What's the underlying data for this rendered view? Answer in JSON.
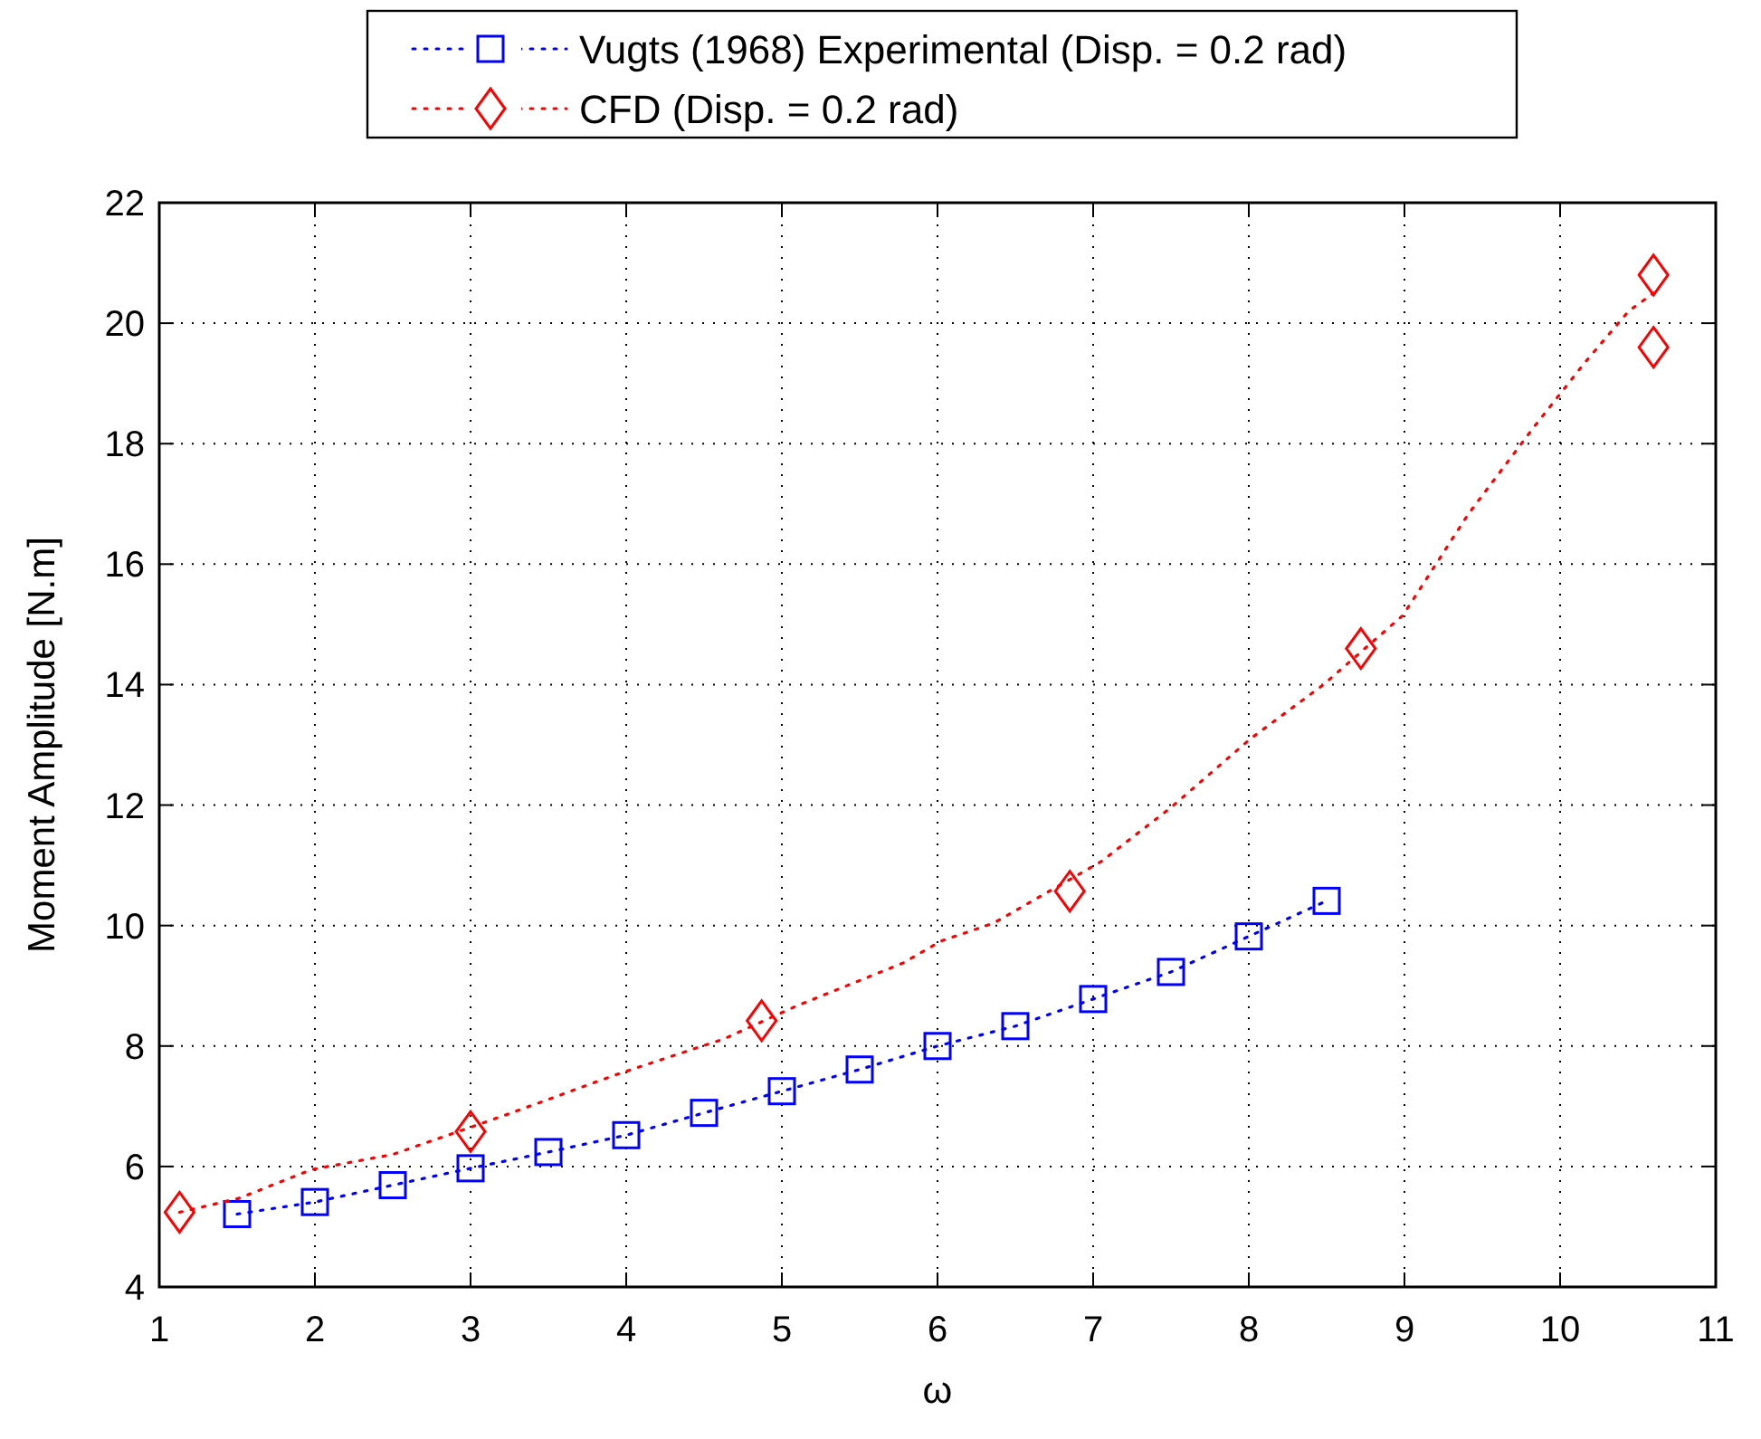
{
  "chart_data": {
    "type": "line",
    "xlabel": "ω",
    "ylabel": "Moment Amplitude [N.m]",
    "xlim": [
      1,
      11
    ],
    "xticks": [
      1,
      2,
      3,
      4,
      5,
      6,
      7,
      8,
      9,
      10,
      11
    ],
    "ylim": [
      4,
      22
    ],
    "yticks": [
      4,
      6,
      8,
      10,
      12,
      14,
      16,
      18,
      20,
      22
    ],
    "grid": true,
    "legend": "top",
    "series": [
      {
        "name": "Vugts (1968) Experimental (Disp. = 0.2 rad)",
        "color": "#0000ff",
        "marker": "square",
        "line_style": "dotted",
        "x": [
          1.5,
          2,
          2.5,
          3,
          3.5,
          4,
          4.5,
          5,
          5.5,
          6,
          6.5,
          7,
          7.5,
          8,
          8.5
        ],
        "values": [
          5.21,
          5.41,
          5.69,
          5.97,
          6.24,
          6.52,
          6.89,
          7.25,
          7.61,
          8.0,
          8.33,
          8.78,
          9.23,
          9.82,
          10.41
        ]
      },
      {
        "name": "CFD (Disp. = 0.2 rad)",
        "type": "scatter",
        "color": "#ff0000",
        "marker": "diamond",
        "line_style": "dotted",
        "x": [
          1.13,
          3.0,
          4.87,
          6.85,
          8.72,
          10.6,
          10.6
        ],
        "values": [
          5.24,
          6.58,
          8.42,
          10.57,
          14.6,
          20.8,
          19.6
        ]
      },
      {
        "color": "#ff0000",
        "marker": "none",
        "line_style": "dotted",
        "x": [
          1.13,
          1.51,
          1.98,
          2.5,
          3.22,
          3.93,
          4.63,
          5.09,
          5.78,
          6.02,
          6.36,
          7.05,
          7.5,
          8.01,
          8.48,
          8.99,
          9.41,
          9.83,
          10.16,
          10.44,
          10.6
        ],
        "values": [
          5.24,
          5.47,
          5.95,
          6.2,
          6.85,
          7.52,
          8.12,
          8.66,
          9.38,
          9.74,
          10.04,
          11.06,
          11.96,
          13.1,
          14.0,
          15.15,
          16.83,
          18.27,
          19.35,
          20.2,
          20.5
        ]
      }
    ]
  }
}
